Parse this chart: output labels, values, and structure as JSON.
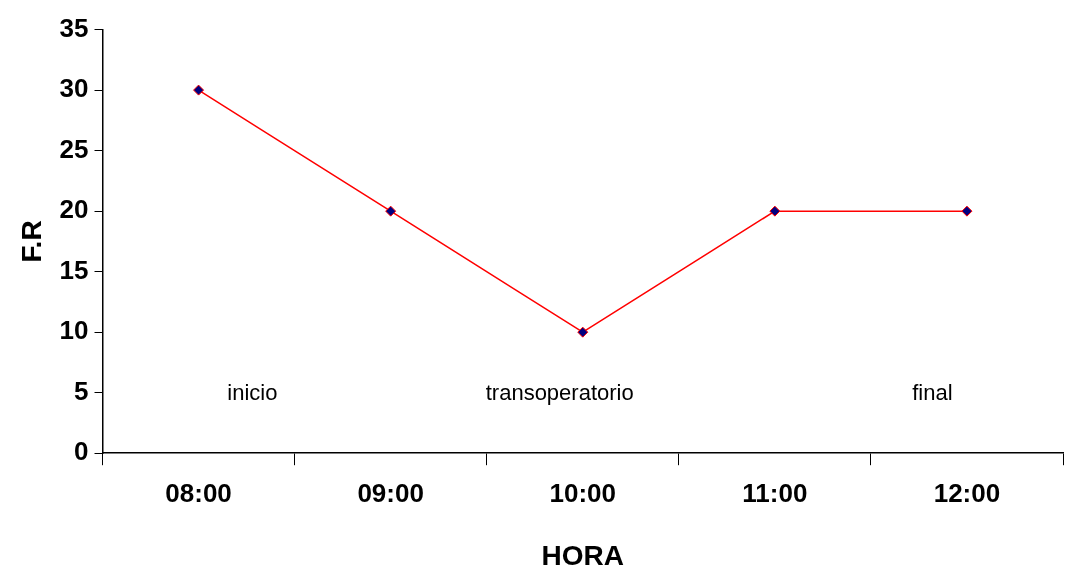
{
  "chart_data": {
    "type": "line",
    "xlabel": "HORA",
    "ylabel": "F.R",
    "categories": [
      "08:00",
      "09:00",
      "10:00",
      "11:00",
      "12:00"
    ],
    "series": [
      {
        "color": "#ff0000",
        "values": [
          30,
          20,
          10,
          20,
          20
        ]
      }
    ],
    "ylim": [
      0,
      35
    ],
    "yticks": [
      0,
      5,
      10,
      15,
      20,
      25,
      30,
      35
    ],
    "grid": false,
    "legend": false,
    "marker": "diamond",
    "line_style": "solid",
    "annotations": [
      "inicio",
      "transoperatorio",
      "final"
    ]
  }
}
